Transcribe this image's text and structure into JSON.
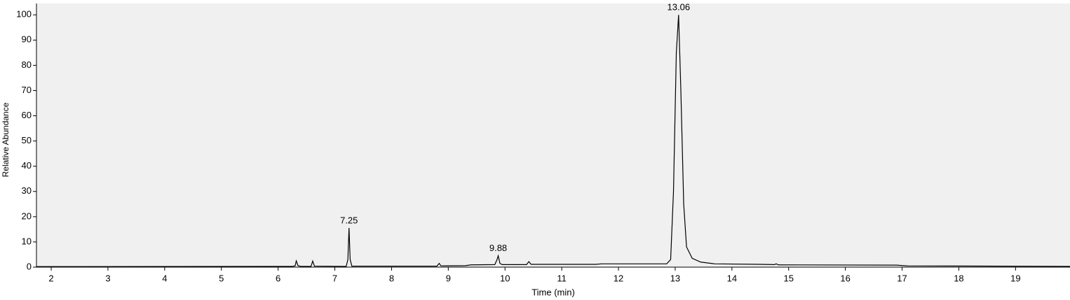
{
  "chart_data": {
    "type": "line",
    "xlabel": "Time (min)",
    "ylabel": "Relative Abundance",
    "xlim": [
      1.74,
      19.96
    ],
    "xticks": [
      2,
      3,
      4,
      5,
      6,
      7,
      8,
      9,
      10,
      11,
      12,
      13,
      14,
      15,
      16,
      17,
      18,
      19
    ],
    "ylim": [
      0,
      104.5
    ],
    "yticks": [
      0,
      10,
      20,
      30,
      40,
      50,
      60,
      70,
      80,
      90,
      100
    ],
    "series": [
      {
        "color": "#000000",
        "x": [
          1.74,
          6.25,
          6.3,
          6.32,
          6.35,
          6.4,
          6.58,
          6.61,
          6.64,
          7.2,
          7.23,
          7.25,
          7.27,
          7.3,
          8.8,
          8.84,
          8.87,
          9.3,
          9.4,
          9.82,
          9.86,
          9.88,
          9.91,
          9.95,
          10.38,
          10.42,
          10.46,
          11.6,
          11.7,
          12.85,
          12.92,
          12.97,
          13.02,
          13.06,
          13.1,
          13.15,
          13.2,
          13.3,
          13.45,
          13.7,
          14.5,
          14.75,
          14.78,
          14.82,
          16.9,
          17.1,
          19.96
        ],
        "values": [
          0.2,
          0.3,
          0.5,
          2.5,
          0.6,
          0.3,
          0.3,
          2.4,
          0.4,
          0.3,
          3,
          15.5,
          3,
          0.4,
          0.4,
          1.5,
          0.5,
          0.6,
          0.9,
          1.0,
          3,
          4.5,
          1.5,
          1.0,
          1.0,
          2.2,
          1.1,
          1.1,
          1.3,
          1.3,
          3,
          30,
          85,
          100,
          70,
          25,
          8,
          3.5,
          2,
          1.3,
          1.1,
          1.0,
          1.3,
          0.9,
          0.8,
          0.5,
          0.3
        ]
      }
    ],
    "annotations": [
      {
        "text": "7.25",
        "x": 7.25,
        "y": 15.5
      },
      {
        "text": "9.88",
        "x": 9.88,
        "y": 4.5
      },
      {
        "text": "13.06",
        "x": 13.06,
        "y": 100
      }
    ]
  }
}
